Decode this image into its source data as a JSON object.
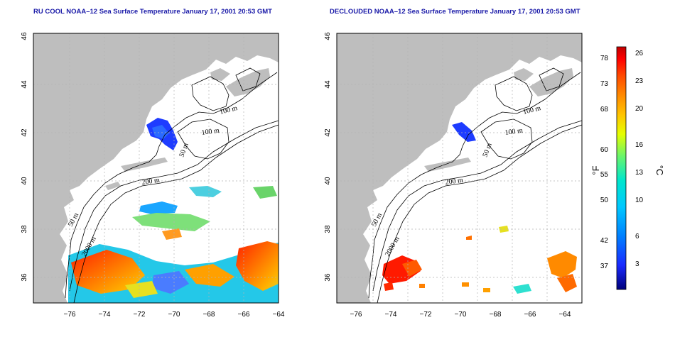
{
  "panels": [
    {
      "title": "RU COOL NOAA–12 Sea Surface Temperature January 17, 2001 20:53 GMT",
      "lon_ticks": [
        "−76",
        "−74",
        "−72",
        "−70",
        "−68",
        "−66",
        "−64"
      ],
      "lat_ticks": [
        "36",
        "38",
        "40",
        "42",
        "44",
        "46"
      ]
    },
    {
      "title": "DECLOUDED NOAA–12 Sea Surface Temperature January 17, 2001 20:53 GMT",
      "lon_ticks": [
        "−76",
        "−74",
        "−72",
        "−70",
        "−68",
        "−66",
        "−64"
      ],
      "lat_ticks": [
        "36",
        "38",
        "40",
        "42",
        "44",
        "46"
      ]
    }
  ],
  "contour_labels": [
    "100 m",
    "100 m",
    "50 m",
    "200 m",
    "50 m",
    "2000 m"
  ],
  "colorbar": {
    "fahrenheit_unit": "°F",
    "celsius_unit": "°C",
    "fahrenheit_ticks": [
      "78",
      "73",
      "68",
      "60",
      "55",
      "50",
      "42",
      "37"
    ],
    "celsius_ticks": [
      "26",
      "23",
      "20",
      "16",
      "13",
      "10",
      "6",
      "3"
    ],
    "colors": [
      "#ffffff",
      "#ff0000",
      "#ff4a00",
      "#ff8a00",
      "#ffc400",
      "#e6ff00",
      "#6af56a",
      "#00e6cc",
      "#00c8ff",
      "#0080ff",
      "#1a2aff",
      "#00007a"
    ]
  },
  "colors": {
    "land": "#bebebe",
    "title": "#1a1aa8",
    "grid": "#b4b4b4"
  }
}
